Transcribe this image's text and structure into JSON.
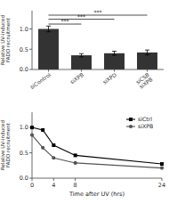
{
  "chart_data": [
    {
      "type": "bar",
      "categories": [
        "siControl",
        "siXPB",
        "siXPD",
        "siCSB\nsiXPB"
      ],
      "values": [
        1.0,
        0.35,
        0.4,
        0.42
      ],
      "errors": [
        0.07,
        0.04,
        0.05,
        0.06
      ],
      "color": "#333333",
      "ylabel": "Relative UV-induced\nFADD recruitment",
      "ylim": [
        0,
        1.45
      ],
      "yticks": [
        {
          "value": 0,
          "label": "0.0"
        },
        0.5,
        {
          "value": 1,
          "label": "1.0"
        }
      ],
      "grid": false,
      "annotations": [
        {
          "text": "***",
          "from": "siControl",
          "to": "siXPB",
          "y": 1.12
        },
        {
          "text": "***",
          "from": "siControl",
          "to": "siXPD",
          "y": 1.24
        },
        {
          "text": "***",
          "from": "siControl",
          "to": "siCSB\nsiXPB",
          "y": 1.34
        }
      ]
    },
    {
      "type": "line",
      "x": [
        0,
        2,
        4,
        8,
        24
      ],
      "series": [
        {
          "name": "siCtrl",
          "color": "#000000",
          "marker": "square",
          "values": [
            1.0,
            0.95,
            0.65,
            0.45,
            0.28
          ]
        },
        {
          "name": "siXPB",
          "color": "#555555",
          "marker": "circle",
          "values": [
            0.85,
            0.6,
            0.4,
            0.3,
            0.2
          ]
        }
      ],
      "xlabel": "Time after UV (hrs)",
      "ylabel": "Relative UV-induced\nFADD recruitment",
      "xlim": [
        0,
        24
      ],
      "ylim": [
        0,
        1.3
      ],
      "xticks": [
        0,
        4,
        8,
        24
      ],
      "yticks": [
        {
          "value": 0,
          "label": "0.0"
        },
        0.5,
        {
          "value": 1,
          "label": "1.0"
        }
      ],
      "grid": false,
      "legend": "upper right"
    }
  ]
}
